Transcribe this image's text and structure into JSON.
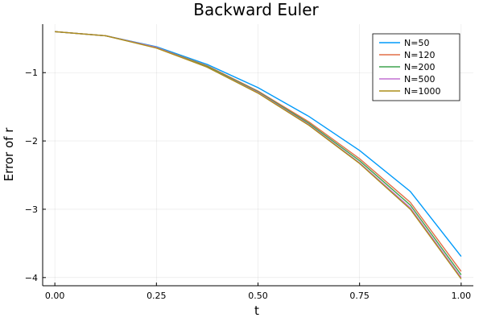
{
  "chart_data": {
    "type": "line",
    "title": "Backward Euler",
    "xlabel": "t",
    "ylabel": "Error of r",
    "xlim": [
      -0.03,
      1.03
    ],
    "ylim": [
      -4.12,
      -0.29
    ],
    "xticks": [
      0.0,
      0.25,
      0.5,
      0.75,
      1.0
    ],
    "xtick_labels": [
      "0.00",
      "0.25",
      "0.50",
      "0.75",
      "1.00"
    ],
    "yticks": [
      -1,
      -2,
      -3,
      -4
    ],
    "ytick_labels": [
      "−1",
      "−2",
      "−3",
      "−4"
    ],
    "grid": true,
    "legend_position": "top-right",
    "x": [
      0.0,
      0.125,
      0.25,
      0.375,
      0.5,
      0.625,
      0.75,
      0.875,
      1.0
    ],
    "series": [
      {
        "name": "N=50",
        "color": "#009AFA",
        "values": [
          -0.4,
          -0.46,
          -0.62,
          -0.88,
          -1.22,
          -1.64,
          -2.14,
          -2.74,
          -3.69
        ]
      },
      {
        "name": "N=120",
        "color": "#E26F46",
        "values": [
          -0.4,
          -0.46,
          -0.63,
          -0.9,
          -1.27,
          -1.72,
          -2.26,
          -2.9,
          -3.91
        ]
      },
      {
        "name": "N=200",
        "color": "#3EA44E",
        "values": [
          -0.4,
          -0.46,
          -0.63,
          -0.91,
          -1.28,
          -1.74,
          -2.29,
          -2.94,
          -3.96
        ]
      },
      {
        "name": "N=500",
        "color": "#C270D2",
        "values": [
          -0.4,
          -0.46,
          -0.63,
          -0.92,
          -1.29,
          -1.76,
          -2.32,
          -2.98,
          -4.0
        ]
      },
      {
        "name": "N=1000",
        "color": "#AC8E18",
        "values": [
          -0.4,
          -0.46,
          -0.64,
          -0.92,
          -1.3,
          -1.77,
          -2.33,
          -3.0,
          -4.02
        ]
      }
    ]
  }
}
